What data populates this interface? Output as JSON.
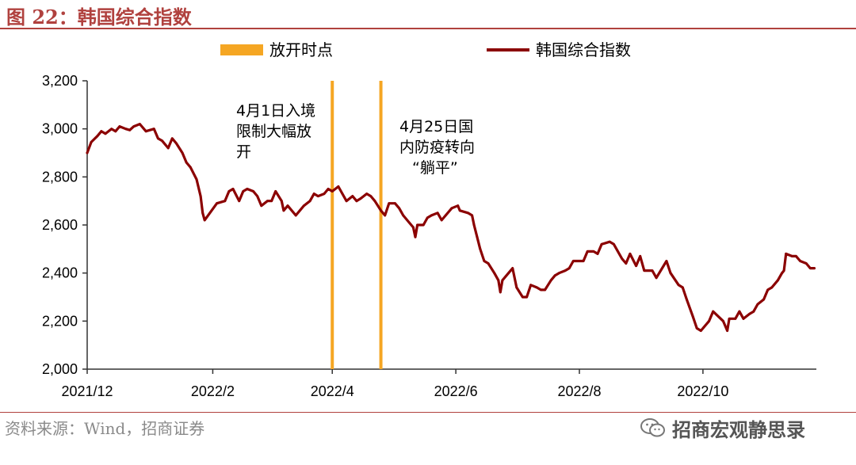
{
  "figure": {
    "title": "图 22：韩国综合指数",
    "source": "资料来源：Wind，招商证券",
    "watermark": "招商宏观静思录"
  },
  "colors": {
    "accent": "#b0413e",
    "series": "#8b0000",
    "event_line": "#f5a623"
  },
  "legend": {
    "placement": "top",
    "items": [
      {
        "label": "放开时点",
        "marker": "bar",
        "color": "#f5a623"
      },
      {
        "label": "韩国综合指数",
        "marker": "line",
        "color": "#8b0000"
      }
    ]
  },
  "annotations": [
    {
      "lines": [
        "4月1日入境",
        "限制大幅放",
        "开"
      ]
    },
    {
      "lines": [
        "4月25日国",
        "内防疫转向",
        "“躺平”"
      ]
    }
  ],
  "chart_data": {
    "type": "line",
    "title": "",
    "xlabel": "",
    "ylabel": "",
    "ylim": [
      2000,
      3200
    ],
    "xlim": [
      "2021-12-01",
      "2022-11-26"
    ],
    "y_ticks": [
      2000,
      2200,
      2400,
      2600,
      2800,
      3000,
      3200
    ],
    "y_tick_labels": [
      "2,000",
      "2,200",
      "2,400",
      "2,600",
      "2,800",
      "3,000",
      "3,200"
    ],
    "x_ticks": [
      "2021-12-01",
      "2022-02-01",
      "2022-04-01",
      "2022-06-01",
      "2022-08-01",
      "2022-10-01"
    ],
    "x_tick_labels": [
      "2021/12",
      "2022/2",
      "2022/4",
      "2022/6",
      "2022/8",
      "2022/10"
    ],
    "grid": false,
    "vertical_lines": [
      {
        "date": "2022-04-01",
        "label": "放开时点"
      },
      {
        "date": "2022-04-25",
        "label": "放开时点"
      }
    ],
    "series": [
      {
        "name": "韩国综合指数",
        "points": [
          [
            "2021-12-01",
            2900
          ],
          [
            "2021-12-03",
            2945
          ],
          [
            "2021-12-06",
            2970
          ],
          [
            "2021-12-08",
            2990
          ],
          [
            "2021-12-10",
            2980
          ],
          [
            "2021-12-13",
            3000
          ],
          [
            "2021-12-15",
            2990
          ],
          [
            "2021-12-17",
            3010
          ],
          [
            "2021-12-20",
            3000
          ],
          [
            "2021-12-22",
            2995
          ],
          [
            "2021-12-24",
            3010
          ],
          [
            "2021-12-27",
            3020
          ],
          [
            "2021-12-30",
            2990
          ],
          [
            "2022-01-03",
            3000
          ],
          [
            "2022-01-05",
            2960
          ],
          [
            "2022-01-07",
            2950
          ],
          [
            "2022-01-10",
            2920
          ],
          [
            "2022-01-12",
            2960
          ],
          [
            "2022-01-14",
            2940
          ],
          [
            "2022-01-17",
            2900
          ],
          [
            "2022-01-19",
            2860
          ],
          [
            "2022-01-21",
            2840
          ],
          [
            "2022-01-24",
            2790
          ],
          [
            "2022-01-26",
            2720
          ],
          [
            "2022-01-27",
            2650
          ],
          [
            "2022-01-28",
            2620
          ],
          [
            "2022-02-03",
            2690
          ],
          [
            "2022-02-07",
            2700
          ],
          [
            "2022-02-09",
            2740
          ],
          [
            "2022-02-11",
            2750
          ],
          [
            "2022-02-14",
            2700
          ],
          [
            "2022-02-16",
            2740
          ],
          [
            "2022-02-18",
            2750
          ],
          [
            "2022-02-21",
            2740
          ],
          [
            "2022-02-23",
            2720
          ],
          [
            "2022-02-25",
            2680
          ],
          [
            "2022-02-28",
            2700
          ],
          [
            "2022-03-02",
            2700
          ],
          [
            "2022-03-04",
            2740
          ],
          [
            "2022-03-07",
            2700
          ],
          [
            "2022-03-08",
            2660
          ],
          [
            "2022-03-10",
            2680
          ],
          [
            "2022-03-14",
            2640
          ],
          [
            "2022-03-16",
            2660
          ],
          [
            "2022-03-18",
            2680
          ],
          [
            "2022-03-21",
            2700
          ],
          [
            "2022-03-23",
            2730
          ],
          [
            "2022-03-25",
            2720
          ],
          [
            "2022-03-28",
            2730
          ],
          [
            "2022-03-30",
            2750
          ],
          [
            "2022-04-01",
            2740
          ],
          [
            "2022-04-04",
            2760
          ],
          [
            "2022-04-06",
            2730
          ],
          [
            "2022-04-08",
            2700
          ],
          [
            "2022-04-11",
            2720
          ],
          [
            "2022-04-13",
            2700
          ],
          [
            "2022-04-15",
            2710
          ],
          [
            "2022-04-18",
            2730
          ],
          [
            "2022-04-20",
            2720
          ],
          [
            "2022-04-22",
            2700
          ],
          [
            "2022-04-25",
            2660
          ],
          [
            "2022-04-27",
            2640
          ],
          [
            "2022-04-29",
            2690
          ],
          [
            "2022-05-02",
            2690
          ],
          [
            "2022-05-04",
            2670
          ],
          [
            "2022-05-06",
            2640
          ],
          [
            "2022-05-09",
            2610
          ],
          [
            "2022-05-11",
            2590
          ],
          [
            "2022-05-12",
            2550
          ],
          [
            "2022-05-13",
            2600
          ],
          [
            "2022-05-16",
            2600
          ],
          [
            "2022-05-18",
            2630
          ],
          [
            "2022-05-20",
            2640
          ],
          [
            "2022-05-23",
            2650
          ],
          [
            "2022-05-25",
            2620
          ],
          [
            "2022-05-27",
            2640
          ],
          [
            "2022-05-30",
            2670
          ],
          [
            "2022-06-02",
            2680
          ],
          [
            "2022-06-03",
            2660
          ],
          [
            "2022-06-07",
            2650
          ],
          [
            "2022-06-09",
            2640
          ],
          [
            "2022-06-10",
            2600
          ],
          [
            "2022-06-13",
            2500
          ],
          [
            "2022-06-15",
            2450
          ],
          [
            "2022-06-17",
            2440
          ],
          [
            "2022-06-20",
            2400
          ],
          [
            "2022-06-22",
            2370
          ],
          [
            "2022-06-23",
            2320
          ],
          [
            "2022-06-24",
            2370
          ],
          [
            "2022-06-27",
            2400
          ],
          [
            "2022-06-29",
            2420
          ],
          [
            "2022-07-01",
            2340
          ],
          [
            "2022-07-04",
            2300
          ],
          [
            "2022-07-06",
            2300
          ],
          [
            "2022-07-08",
            2350
          ],
          [
            "2022-07-11",
            2340
          ],
          [
            "2022-07-13",
            2330
          ],
          [
            "2022-07-15",
            2330
          ],
          [
            "2022-07-18",
            2370
          ],
          [
            "2022-07-20",
            2390
          ],
          [
            "2022-07-22",
            2400
          ],
          [
            "2022-07-25",
            2410
          ],
          [
            "2022-07-27",
            2420
          ],
          [
            "2022-07-29",
            2450
          ],
          [
            "2022-08-01",
            2450
          ],
          [
            "2022-08-03",
            2450
          ],
          [
            "2022-08-05",
            2490
          ],
          [
            "2022-08-08",
            2490
          ],
          [
            "2022-08-10",
            2480
          ],
          [
            "2022-08-12",
            2520
          ],
          [
            "2022-08-16",
            2530
          ],
          [
            "2022-08-18",
            2520
          ],
          [
            "2022-08-22",
            2460
          ],
          [
            "2022-08-24",
            2440
          ],
          [
            "2022-08-26",
            2480
          ],
          [
            "2022-08-29",
            2430
          ],
          [
            "2022-08-31",
            2470
          ],
          [
            "2022-09-02",
            2410
          ],
          [
            "2022-09-06",
            2410
          ],
          [
            "2022-09-08",
            2380
          ],
          [
            "2022-09-13",
            2450
          ],
          [
            "2022-09-15",
            2400
          ],
          [
            "2022-09-19",
            2350
          ],
          [
            "2022-09-21",
            2340
          ],
          [
            "2022-09-23",
            2290
          ],
          [
            "2022-09-26",
            2220
          ],
          [
            "2022-09-28",
            2170
          ],
          [
            "2022-09-30",
            2160
          ],
          [
            "2022-10-04",
            2200
          ],
          [
            "2022-10-06",
            2240
          ],
          [
            "2022-10-11",
            2200
          ],
          [
            "2022-10-13",
            2160
          ],
          [
            "2022-10-14",
            2210
          ],
          [
            "2022-10-17",
            2210
          ],
          [
            "2022-10-19",
            2240
          ],
          [
            "2022-10-21",
            2210
          ],
          [
            "2022-10-24",
            2230
          ],
          [
            "2022-10-26",
            2240
          ],
          [
            "2022-10-28",
            2270
          ],
          [
            "2022-10-31",
            2290
          ],
          [
            "2022-11-02",
            2330
          ],
          [
            "2022-11-04",
            2340
          ],
          [
            "2022-11-07",
            2370
          ],
          [
            "2022-11-09",
            2400
          ],
          [
            "2022-11-10",
            2410
          ],
          [
            "2022-11-11",
            2480
          ],
          [
            "2022-11-14",
            2470
          ],
          [
            "2022-11-16",
            2470
          ],
          [
            "2022-11-18",
            2450
          ],
          [
            "2022-11-21",
            2440
          ],
          [
            "2022-11-23",
            2420
          ],
          [
            "2022-11-25",
            2420
          ]
        ]
      }
    ]
  }
}
